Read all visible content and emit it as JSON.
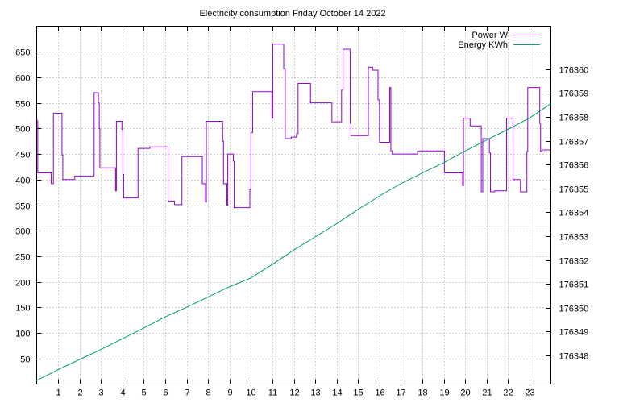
{
  "chart_data": {
    "type": "line",
    "title": "Electricity consumption Friday October 14 2022",
    "x": {
      "ticks": [
        1,
        2,
        3,
        4,
        5,
        6,
        7,
        8,
        9,
        10,
        11,
        12,
        13,
        14,
        15,
        16,
        17,
        18,
        19,
        20,
        21,
        22,
        23
      ],
      "range": [
        0,
        24
      ]
    },
    "y_left": {
      "ticks": [
        50,
        100,
        150,
        200,
        250,
        300,
        350,
        400,
        450,
        500,
        550,
        600,
        650
      ],
      "range": [
        0,
        700
      ]
    },
    "y_right": {
      "ticks": [
        176348,
        176349,
        176350,
        176351,
        176352,
        176353,
        176354,
        176355,
        176356,
        176357,
        176358,
        176359,
        176360
      ],
      "range": [
        176346.8,
        176361.8
      ]
    },
    "grid": true,
    "legend_position": "top-right",
    "series": [
      {
        "name": "Power W",
        "axis": "left",
        "color": "#9400d3",
        "style": "step",
        "points": [
          [
            0.0,
            515
          ],
          [
            0.05,
            413
          ],
          [
            0.65,
            413
          ],
          [
            0.68,
            392
          ],
          [
            0.75,
            392
          ],
          [
            0.78,
            530
          ],
          [
            1.15,
            530
          ],
          [
            1.18,
            448
          ],
          [
            1.22,
            400
          ],
          [
            1.75,
            400
          ],
          [
            1.78,
            407
          ],
          [
            2.65,
            407
          ],
          [
            2.68,
            570
          ],
          [
            2.85,
            570
          ],
          [
            2.88,
            550
          ],
          [
            2.92,
            500
          ],
          [
            2.95,
            423
          ],
          [
            3.65,
            423
          ],
          [
            3.68,
            378
          ],
          [
            3.72,
            514
          ],
          [
            3.95,
            514
          ],
          [
            3.98,
            498
          ],
          [
            4.02,
            410
          ],
          [
            4.06,
            364
          ],
          [
            4.7,
            364
          ],
          [
            4.73,
            461
          ],
          [
            5.25,
            461
          ],
          [
            5.28,
            464
          ],
          [
            6.1,
            464
          ],
          [
            6.13,
            358
          ],
          [
            6.4,
            358
          ],
          [
            6.43,
            351
          ],
          [
            6.75,
            351
          ],
          [
            6.78,
            445
          ],
          [
            7.7,
            445
          ],
          [
            7.73,
            392
          ],
          [
            7.85,
            392
          ],
          [
            7.88,
            356
          ],
          [
            7.92,
            514
          ],
          [
            8.65,
            514
          ],
          [
            8.68,
            475
          ],
          [
            8.72,
            392
          ],
          [
            8.85,
            392
          ],
          [
            8.88,
            350
          ],
          [
            8.92,
            450
          ],
          [
            9.15,
            450
          ],
          [
            9.18,
            436
          ],
          [
            9.22,
            345
          ],
          [
            9.92,
            345
          ],
          [
            9.95,
            380
          ],
          [
            10.0,
            492
          ],
          [
            10.08,
            572
          ],
          [
            10.95,
            572
          ],
          [
            10.98,
            520
          ],
          [
            11.02,
            665
          ],
          [
            11.5,
            665
          ],
          [
            11.53,
            617
          ],
          [
            11.6,
            480
          ],
          [
            11.85,
            480
          ],
          [
            11.88,
            483
          ],
          [
            12.1,
            483
          ],
          [
            12.13,
            490
          ],
          [
            12.2,
            588
          ],
          [
            12.75,
            588
          ],
          [
            12.78,
            550
          ],
          [
            13.75,
            550
          ],
          [
            13.78,
            513
          ],
          [
            14.2,
            513
          ],
          [
            14.23,
            575
          ],
          [
            14.3,
            655
          ],
          [
            14.6,
            655
          ],
          [
            14.63,
            510
          ],
          [
            14.67,
            486
          ],
          [
            15.45,
            486
          ],
          [
            15.48,
            620
          ],
          [
            15.65,
            620
          ],
          [
            15.68,
            614
          ],
          [
            15.9,
            614
          ],
          [
            15.93,
            556
          ],
          [
            16.0,
            473
          ],
          [
            16.45,
            473
          ],
          [
            16.48,
            580
          ],
          [
            16.53,
            456
          ],
          [
            16.6,
            450
          ],
          [
            17.75,
            450
          ],
          [
            17.78,
            456
          ],
          [
            19.0,
            456
          ],
          [
            19.03,
            413
          ],
          [
            19.85,
            413
          ],
          [
            19.88,
            388
          ],
          [
            19.92,
            520
          ],
          [
            20.2,
            520
          ],
          [
            20.23,
            505
          ],
          [
            20.72,
            505
          ],
          [
            20.75,
            376
          ],
          [
            20.82,
            480
          ],
          [
            21.1,
            480
          ],
          [
            21.13,
            452
          ],
          [
            21.18,
            376
          ],
          [
            21.35,
            376
          ],
          [
            21.38,
            378
          ],
          [
            21.9,
            378
          ],
          [
            21.93,
            520
          ],
          [
            22.2,
            520
          ],
          [
            22.23,
            400
          ],
          [
            22.55,
            400
          ],
          [
            22.58,
            376
          ],
          [
            22.85,
            376
          ],
          [
            22.88,
            455
          ],
          [
            22.92,
            580
          ],
          [
            23.45,
            580
          ],
          [
            23.48,
            510
          ],
          [
            23.52,
            455
          ],
          [
            23.58,
            458
          ],
          [
            24.0,
            458
          ]
        ]
      },
      {
        "name": "Energy KWh",
        "axis": "right",
        "color": "#009e73",
        "style": "line",
        "points": [
          [
            0.0,
            176346.95
          ],
          [
            1.0,
            176347.4
          ],
          [
            2.0,
            176347.83
          ],
          [
            3.0,
            176348.25
          ],
          [
            4.0,
            176348.7
          ],
          [
            5.0,
            176349.15
          ],
          [
            6.0,
            176349.62
          ],
          [
            7.0,
            176350.02
          ],
          [
            8.0,
            176350.45
          ],
          [
            9.0,
            176350.88
          ],
          [
            10.0,
            176351.25
          ],
          [
            11.0,
            176351.82
          ],
          [
            12.0,
            176352.42
          ],
          [
            13.0,
            176352.97
          ],
          [
            14.0,
            176353.52
          ],
          [
            15.0,
            176354.12
          ],
          [
            16.0,
            176354.68
          ],
          [
            17.0,
            176355.2
          ],
          [
            18.0,
            176355.65
          ],
          [
            19.0,
            176356.08
          ],
          [
            20.0,
            176356.57
          ],
          [
            21.0,
            176357.03
          ],
          [
            22.0,
            176357.48
          ],
          [
            23.0,
            176357.95
          ],
          [
            24.0,
            176358.55
          ]
        ]
      }
    ]
  }
}
